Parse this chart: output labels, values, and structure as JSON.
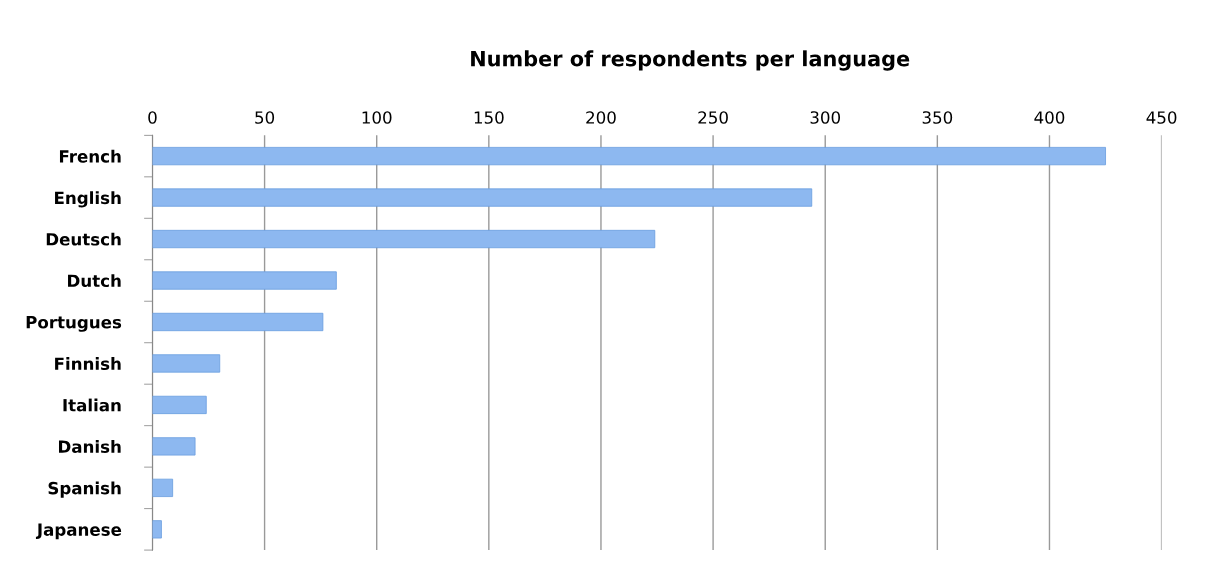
{
  "chart_data": {
    "type": "bar",
    "orientation": "horizontal",
    "title": "Number of respondents per language",
    "categories": [
      "French",
      "English",
      "Deutsch",
      "Dutch",
      "Portugues",
      "Finnish",
      "Italian",
      "Danish",
      "Spanish",
      "Japanese"
    ],
    "values": [
      425,
      294,
      224,
      82,
      76,
      30,
      24,
      19,
      9,
      4
    ],
    "color": "#8db8f0",
    "xlim": [
      0,
      450
    ],
    "xticks": [
      0,
      50,
      100,
      150,
      200,
      250,
      300,
      350,
      400,
      450
    ],
    "grid": "x"
  }
}
